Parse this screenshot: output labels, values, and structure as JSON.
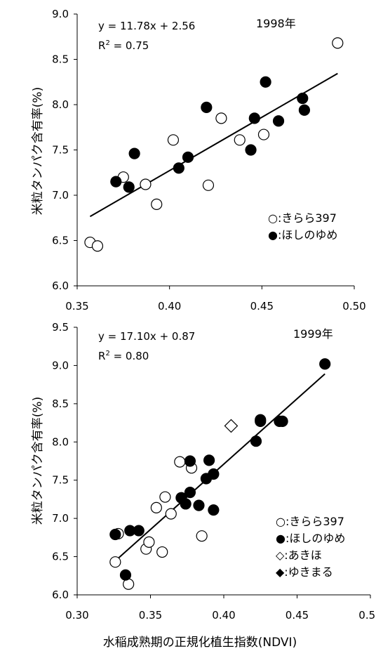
{
  "xlabel": "水稲成熟期の正規化植生指数(NDVI)",
  "chart_data": [
    {
      "type": "scatter",
      "ylabel": "米粒タンパク含有率(%)",
      "year_label": "1998年",
      "equation": "y = 11.78x + 2.56",
      "r2_prefix": "R",
      "r2_sup": "2",
      "r2_value": " = 0.75",
      "xlim": [
        0.35,
        0.5
      ],
      "ylim": [
        6.0,
        9.0
      ],
      "xticks": [
        "0.35",
        "0.40",
        "0.45",
        "0.50"
      ],
      "yticks": [
        "6.0",
        "6.5",
        "7.0",
        "7.5",
        "8.0",
        "8.5",
        "9.0"
      ],
      "regression": {
        "slope": 11.78,
        "intercept": 2.56,
        "x_range": [
          0.357,
          0.491
        ]
      },
      "legend_position": "bottom-right",
      "series": [
        {
          "name": "きらら397",
          "legend_label": "○:きらら397",
          "marker": "circle-open",
          "points": [
            [
              0.357,
              6.48
            ],
            [
              0.361,
              6.44
            ],
            [
              0.375,
              7.2
            ],
            [
              0.387,
              7.12
            ],
            [
              0.393,
              6.9
            ],
            [
              0.402,
              7.61
            ],
            [
              0.421,
              7.11
            ],
            [
              0.428,
              7.85
            ],
            [
              0.438,
              7.61
            ],
            [
              0.451,
              7.67
            ],
            [
              0.491,
              8.68
            ]
          ]
        },
        {
          "name": "ほしのゆめ",
          "legend_label": "●:ほしのゆめ",
          "marker": "circle-filled",
          "points": [
            [
              0.371,
              7.15
            ],
            [
              0.378,
              7.09
            ],
            [
              0.381,
              7.46
            ],
            [
              0.405,
              7.3
            ],
            [
              0.41,
              7.42
            ],
            [
              0.42,
              7.97
            ],
            [
              0.444,
              7.5
            ],
            [
              0.446,
              7.85
            ],
            [
              0.452,
              8.25
            ],
            [
              0.459,
              7.82
            ],
            [
              0.472,
              8.07
            ],
            [
              0.473,
              7.94
            ]
          ]
        }
      ]
    },
    {
      "type": "scatter",
      "ylabel": "米粒タンパク含有率(%)",
      "year_label": "1999年",
      "equation": "y = 17.10x + 0.87",
      "r2_prefix": "R",
      "r2_sup": "2",
      "r2_value": " = 0.80",
      "xlim": [
        0.3,
        0.5
      ],
      "ylim": [
        6.0,
        9.5
      ],
      "xticks": [
        "0.30",
        "0.35",
        "0.40",
        "0.45",
        "0.50"
      ],
      "yticks": [
        "6.0",
        "6.5",
        "7.0",
        "7.5",
        "8.0",
        "8.5",
        "9.0",
        "9.5"
      ],
      "regression": {
        "slope": 17.1,
        "intercept": 0.87,
        "x_range": [
          0.326,
          0.469
        ]
      },
      "legend_position": "bottom-right",
      "series": [
        {
          "name": "きらら397",
          "legend_label": "○:きらら397",
          "marker": "circle-open",
          "points": [
            [
              0.326,
              6.43
            ],
            [
              0.328,
              6.8
            ],
            [
              0.335,
              6.14
            ],
            [
              0.347,
              6.6
            ],
            [
              0.349,
              6.69
            ],
            [
              0.354,
              7.14
            ],
            [
              0.358,
              6.56
            ],
            [
              0.36,
              7.28
            ],
            [
              0.364,
              7.06
            ],
            [
              0.37,
              7.74
            ],
            [
              0.378,
              7.66
            ],
            [
              0.385,
              6.77
            ]
          ]
        },
        {
          "name": "ほしのゆめ",
          "legend_label": "●:ほしのゆめ",
          "marker": "circle-filled",
          "points": [
            [
              0.326,
              6.79
            ],
            [
              0.333,
              6.26
            ],
            [
              0.336,
              6.84
            ],
            [
              0.342,
              6.84
            ],
            [
              0.371,
              7.27
            ],
            [
              0.374,
              7.19
            ],
            [
              0.377,
              7.75
            ],
            [
              0.377,
              7.34
            ],
            [
              0.383,
              7.17
            ],
            [
              0.388,
              7.52
            ],
            [
              0.39,
              7.76
            ],
            [
              0.393,
              7.58
            ],
            [
              0.393,
              7.11
            ],
            [
              0.422,
              8.01
            ],
            [
              0.425,
              8.29
            ],
            [
              0.425,
              8.27
            ],
            [
              0.438,
              8.27
            ],
            [
              0.44,
              8.27
            ],
            [
              0.469,
              9.02
            ]
          ]
        },
        {
          "name": "あきほ",
          "legend_label": "◇:あきほ",
          "marker": "diamond-open",
          "points": [
            [
              0.405,
              8.21
            ]
          ]
        },
        {
          "name": "ゆきまる",
          "legend_label": "◆:ゆきまる",
          "marker": "diamond-filled",
          "points": []
        }
      ]
    }
  ]
}
